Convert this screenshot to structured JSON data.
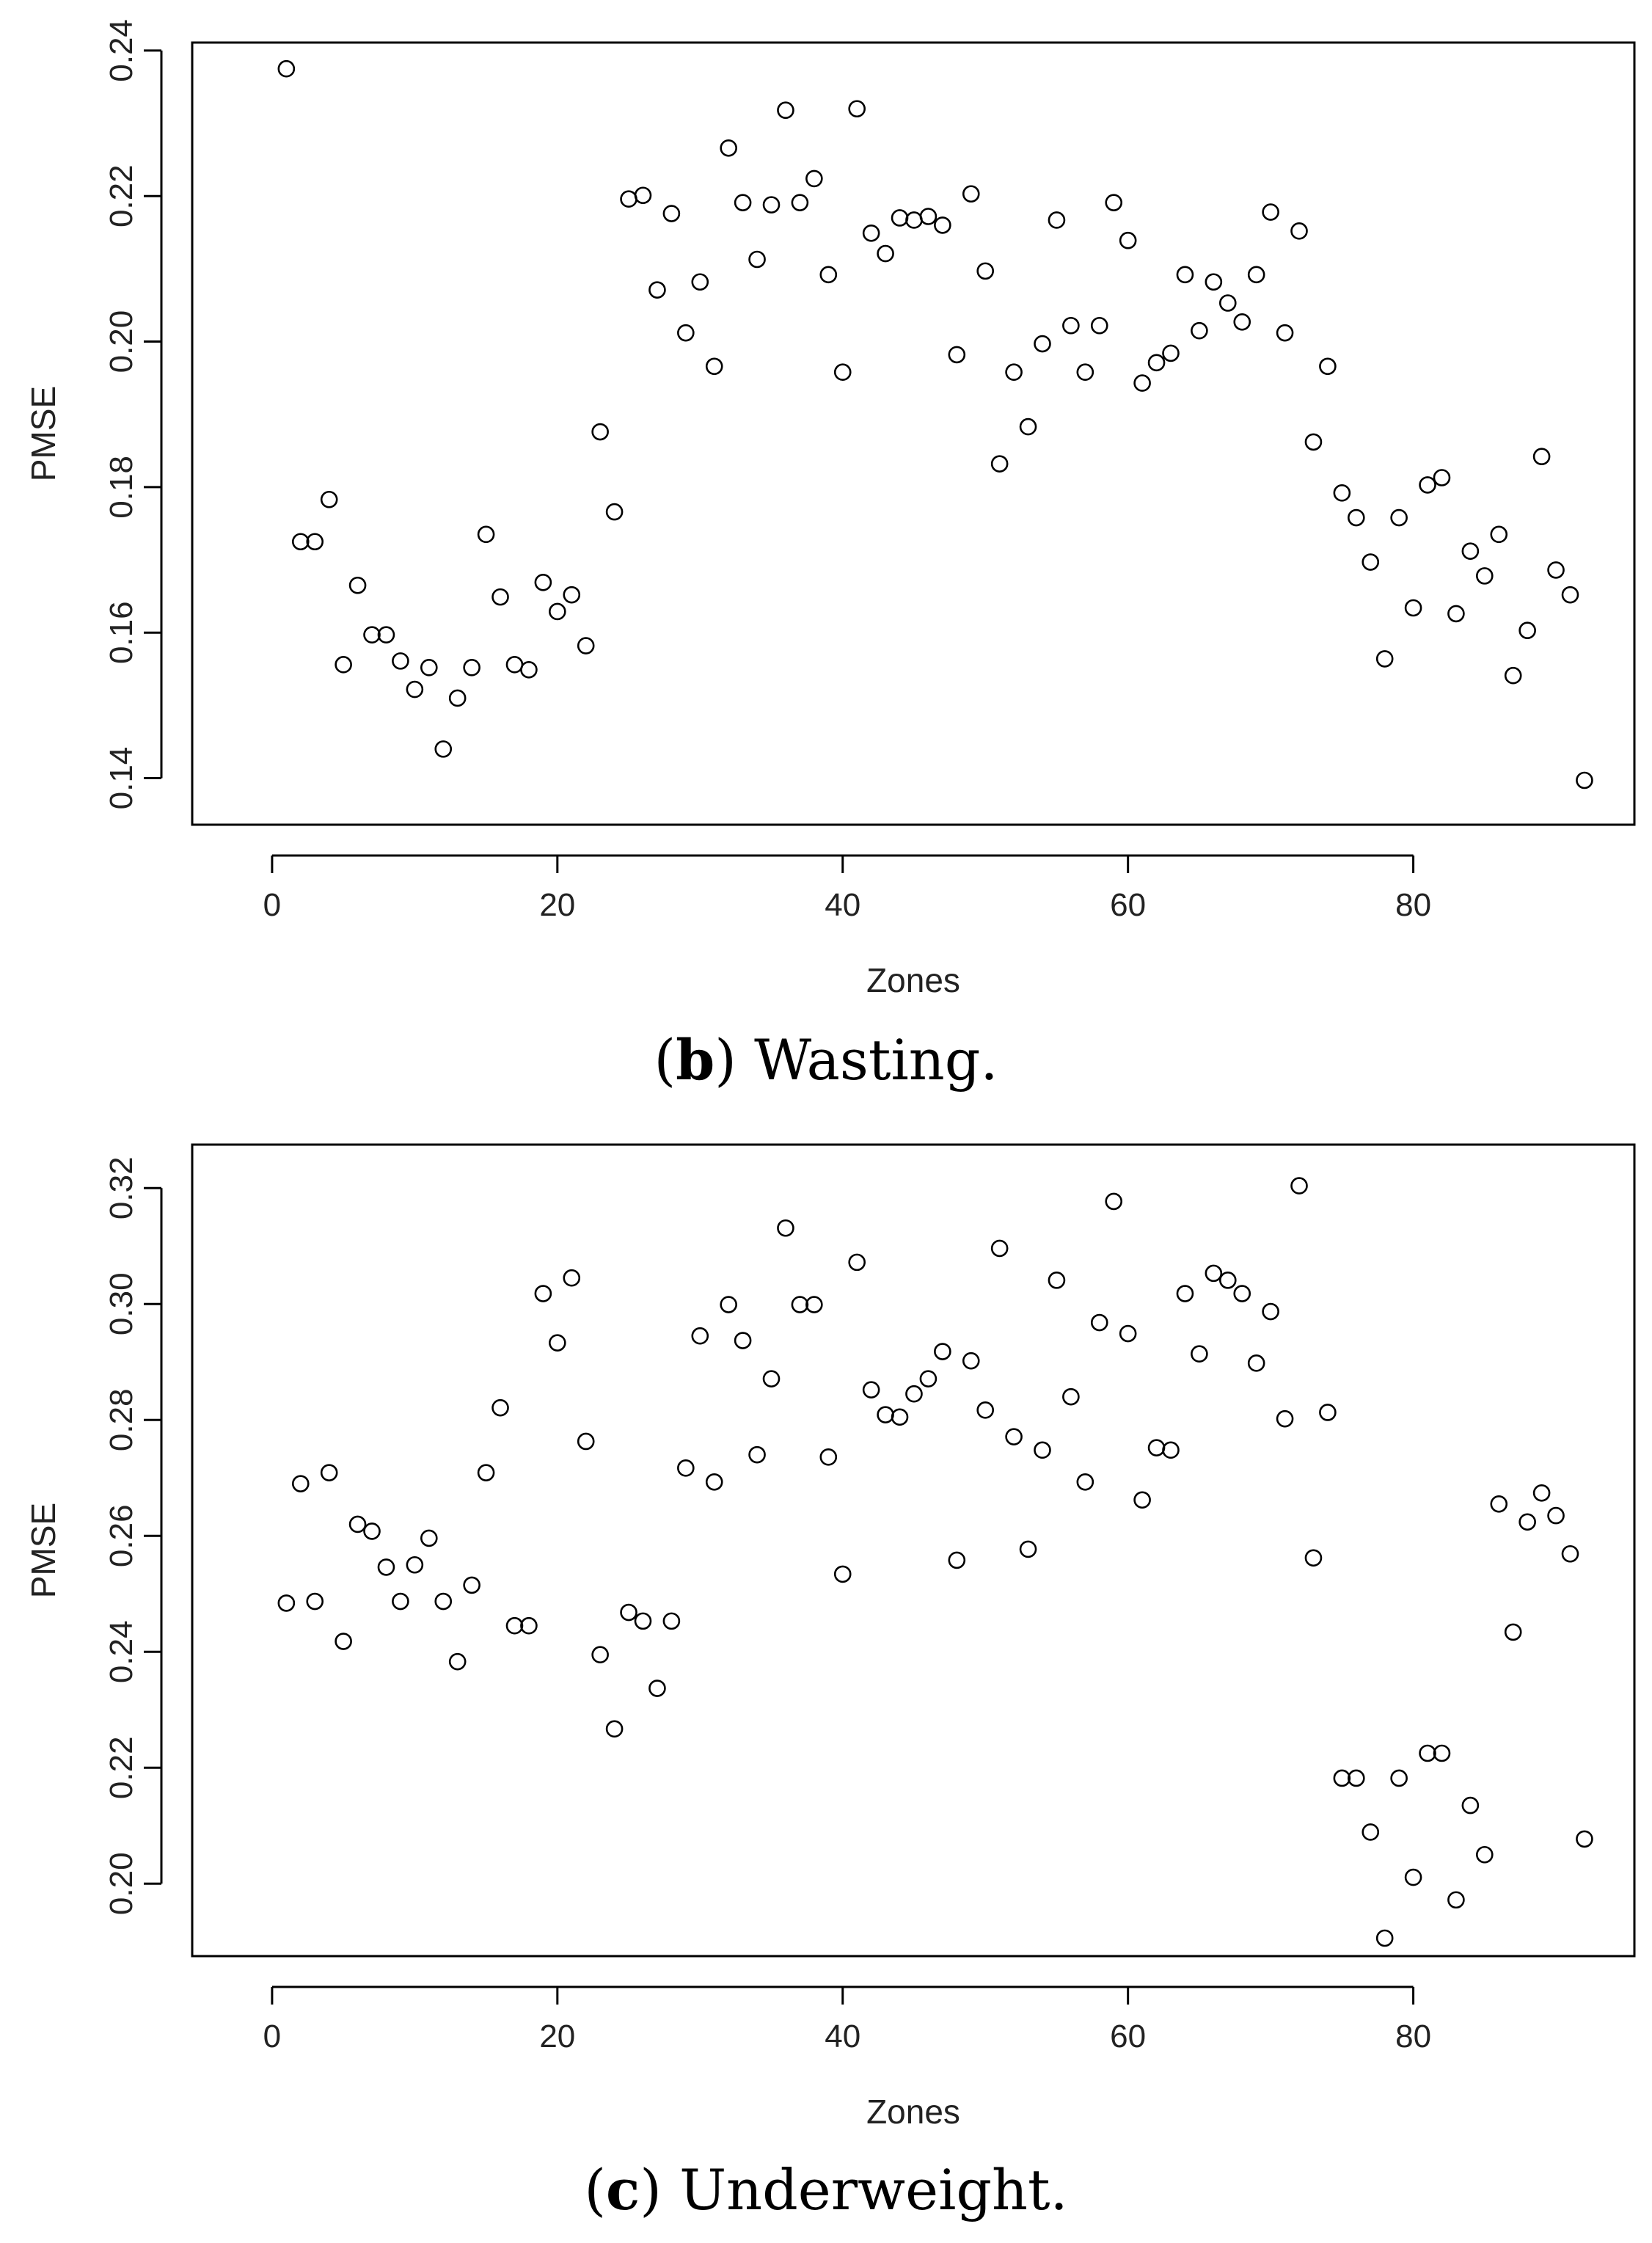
{
  "chart_data": [
    {
      "type": "scatter",
      "caption": {
        "letter": "b",
        "text": "Wasting."
      },
      "xlabel": "Zones",
      "ylabel": "PMSE",
      "xlim": [
        -5.6,
        95.5
      ],
      "ylim": [
        0.1336,
        0.2411
      ],
      "xticks": [
        0,
        20,
        40,
        60,
        80
      ],
      "xtick_labels": [
        "0",
        "20",
        "40",
        "60",
        "80"
      ],
      "yticks": [
        0.14,
        0.16,
        0.18,
        0.2,
        0.22,
        0.24
      ],
      "ytick_labels": [
        "0.14",
        "0.16",
        "0.18",
        "0.20",
        "0.22",
        "0.24"
      ],
      "x": [
        1,
        2,
        3,
        4,
        5,
        6,
        7,
        8,
        9,
        10,
        11,
        12,
        13,
        14,
        15,
        16,
        17,
        18,
        19,
        20,
        21,
        22,
        23,
        24,
        25,
        26,
        27,
        28,
        29,
        30,
        31,
        32,
        33,
        34,
        35,
        36,
        37,
        38,
        39,
        40,
        41,
        42,
        43,
        44,
        45,
        46,
        47,
        48,
        49,
        50,
        51,
        52,
        53,
        54,
        55,
        56,
        57,
        58,
        59,
        60,
        61,
        62,
        63,
        64,
        65,
        66,
        67,
        68,
        69,
        70,
        71,
        72,
        73,
        74,
        75,
        76,
        77,
        78,
        79,
        80,
        81,
        82,
        83,
        84,
        85,
        86,
        87,
        88,
        89,
        90,
        91,
        92
      ],
      "y": [
        0.2375,
        0.1725,
        0.1725,
        0.1783,
        0.1556,
        0.1665,
        0.1597,
        0.1597,
        0.1561,
        0.1522,
        0.1552,
        0.144,
        0.151,
        0.1552,
        0.1735,
        0.1649,
        0.1556,
        0.1549,
        0.1669,
        0.1629,
        0.1652,
        0.1582,
        0.1876,
        0.1766,
        0.2196,
        0.2201,
        0.2071,
        0.2176,
        0.2012,
        0.2082,
        0.1966,
        0.2266,
        0.2191,
        0.2113,
        0.2188,
        0.2318,
        0.2191,
        0.2224,
        0.2092,
        0.1958,
        0.232,
        0.2149,
        0.2121,
        0.217,
        0.2167,
        0.2172,
        0.216,
        0.1982,
        0.2203,
        0.2097,
        0.1832,
        0.1958,
        0.1883,
        0.1997,
        0.2167,
        0.2022,
        0.1958,
        0.2022,
        0.2191,
        0.2139,
        0.1943,
        0.1971,
        0.1984,
        0.2092,
        0.2015,
        0.2082,
        0.2053,
        0.2027,
        0.2092,
        0.2178,
        0.2012,
        0.2152,
        0.1862,
        0.1966,
        0.1792,
        0.1758,
        0.1697,
        0.1564,
        0.1758,
        0.1634,
        0.1803,
        0.1813,
        0.1626,
        0.1712,
        0.1678,
        0.1735,
        0.1541,
        0.1603,
        0.1842,
        0.1686,
        0.1652,
        0.1397
      ]
    },
    {
      "type": "scatter",
      "caption": {
        "letter": "c",
        "text": "Underweight."
      },
      "xlabel": "Zones",
      "ylabel": "PMSE",
      "xlim": [
        -5.6,
        95.5
      ],
      "ylim": [
        0.1875,
        0.3275
      ],
      "xticks": [
        0,
        20,
        40,
        60,
        80
      ],
      "xtick_labels": [
        "0",
        "20",
        "40",
        "60",
        "80"
      ],
      "yticks": [
        0.2,
        0.22,
        0.24,
        0.26,
        0.28,
        0.3,
        0.32
      ],
      "ytick_labels": [
        "0.20",
        "0.22",
        "0.24",
        "0.26",
        "0.28",
        "0.30",
        "0.32"
      ],
      "x": [
        1,
        2,
        3,
        4,
        5,
        6,
        7,
        8,
        9,
        10,
        11,
        12,
        13,
        14,
        15,
        16,
        17,
        18,
        19,
        20,
        21,
        22,
        23,
        24,
        25,
        26,
        27,
        28,
        29,
        30,
        31,
        32,
        33,
        34,
        35,
        36,
        37,
        38,
        39,
        40,
        41,
        42,
        43,
        44,
        45,
        46,
        47,
        48,
        49,
        50,
        51,
        52,
        53,
        54,
        55,
        56,
        57,
        58,
        59,
        60,
        61,
        62,
        63,
        64,
        65,
        66,
        67,
        68,
        69,
        70,
        71,
        72,
        73,
        74,
        75,
        76,
        77,
        78,
        79,
        80,
        81,
        82,
        83,
        84,
        85,
        86,
        87,
        88,
        89,
        90,
        91,
        92
      ],
      "y": [
        0.2484,
        0.269,
        0.2487,
        0.2709,
        0.2418,
        0.262,
        0.2608,
        0.2546,
        0.2487,
        0.255,
        0.2596,
        0.2487,
        0.2383,
        0.2515,
        0.2709,
        0.2821,
        0.2445,
        0.2445,
        0.3018,
        0.2933,
        0.3045,
        0.2763,
        0.2395,
        0.2267,
        0.2468,
        0.2453,
        0.2337,
        0.2453,
        0.2717,
        0.2945,
        0.2693,
        0.2999,
        0.2937,
        0.274,
        0.2871,
        0.3131,
        0.2999,
        0.2999,
        0.2736,
        0.2534,
        0.3072,
        0.2852,
        0.2809,
        0.2805,
        0.2845,
        0.2871,
        0.2918,
        0.2558,
        0.2902,
        0.2817,
        0.3096,
        0.2771,
        0.2577,
        0.2748,
        0.3041,
        0.284,
        0.2693,
        0.2968,
        0.3177,
        0.2949,
        0.2662,
        0.2752,
        0.2748,
        0.3018,
        0.2914,
        0.3053,
        0.3041,
        0.3018,
        0.2898,
        0.2987,
        0.2802,
        0.3204,
        0.2562,
        0.2813,
        0.2182,
        0.2182,
        0.2089,
        0.1906,
        0.2182,
        0.2011,
        0.2225,
        0.2225,
        0.1972,
        0.2135,
        0.205,
        0.2655,
        0.2434,
        0.2624,
        0.2674,
        0.2635,
        0.2569,
        0.2077
      ]
    }
  ]
}
